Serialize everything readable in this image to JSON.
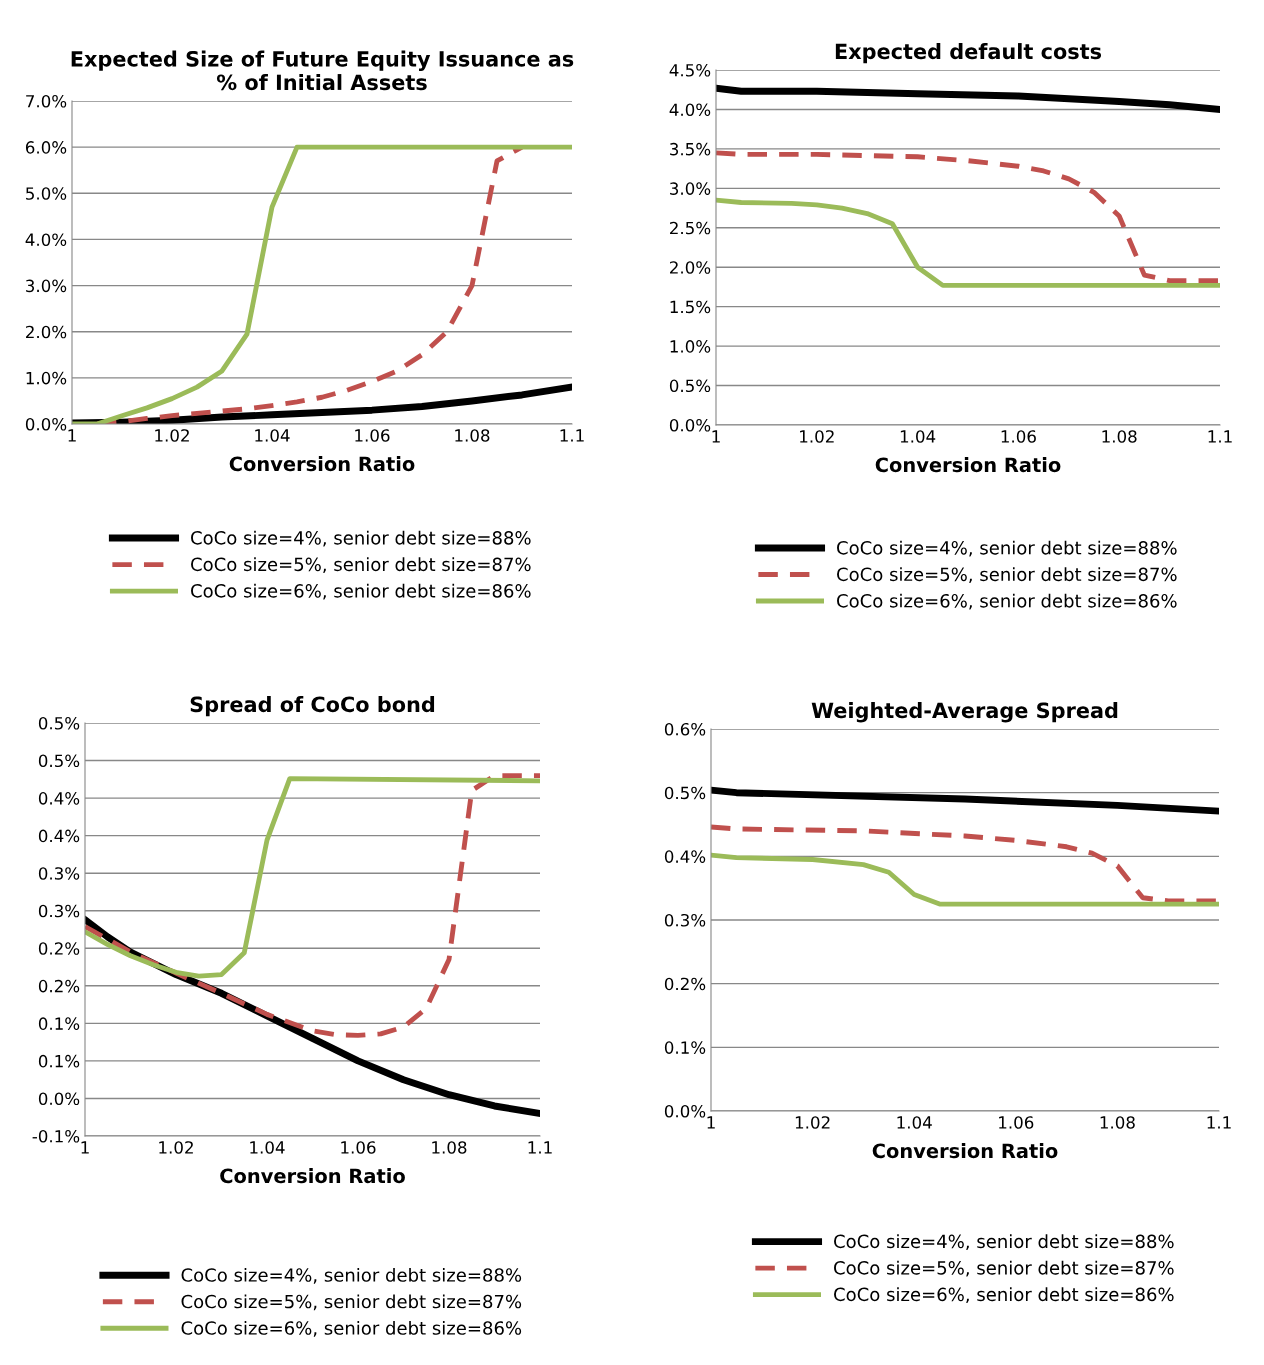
{
  "chart_data": [
    {
      "type": "line",
      "title": "Expected Size of Future Equity Issuance as\n% of Initial Assets",
      "xlabel": "Conversion Ratio",
      "xlim": [
        1,
        1.1
      ],
      "xticks": [
        1,
        1.02,
        1.04,
        1.06,
        1.08,
        1.1
      ],
      "ylim": [
        0,
        7
      ],
      "yticks": [
        {
          "value": 0,
          "label": "0.0%"
        },
        {
          "value": 1,
          "label": "1.0%"
        },
        {
          "value": 2,
          "label": "2.0%"
        },
        {
          "value": 3,
          "label": "3.0%"
        },
        {
          "value": 4,
          "label": "4.0%"
        },
        {
          "value": 5,
          "label": "5.0%"
        },
        {
          "value": 6,
          "label": "6.0%"
        },
        {
          "value": 7,
          "label": "7.0%"
        }
      ],
      "grid": "y",
      "legend": "bottom",
      "series": [
        {
          "name": "CoCo size=4%, senior debt size=88%",
          "color": "#000000",
          "line_style": "solid",
          "x": [
            1,
            1.01,
            1.02,
            1.03,
            1.04,
            1.05,
            1.06,
            1.07,
            1.08,
            1.09,
            1.1
          ],
          "values": [
            0.02,
            0.04,
            0.08,
            0.15,
            0.2,
            0.25,
            0.3,
            0.38,
            0.5,
            0.63,
            0.8
          ]
        },
        {
          "name": "CoCo size=5%, senior debt size=87%",
          "color": "#c0504d",
          "line_style": "dashed",
          "x": [
            1.005,
            1.01,
            1.015,
            1.02,
            1.025,
            1.03,
            1.035,
            1.04,
            1.045,
            1.05,
            1.055,
            1.06,
            1.065,
            1.07,
            1.075,
            1.08,
            1.085,
            1.09
          ],
          "values": [
            0,
            0.05,
            0.12,
            0.18,
            0.23,
            0.28,
            0.33,
            0.4,
            0.48,
            0.58,
            0.73,
            0.92,
            1.15,
            1.5,
            2.0,
            3.0,
            5.7,
            6.0
          ]
        },
        {
          "name": "CoCo size=6%, senior debt size=86%",
          "color": "#9bbb59",
          "line_style": "solid",
          "x": [
            1,
            1.005,
            1.01,
            1.015,
            1.02,
            1.025,
            1.03,
            1.035,
            1.04,
            1.045,
            1.1
          ],
          "values": [
            0,
            0,
            0.18,
            0.35,
            0.55,
            0.8,
            1.15,
            1.95,
            4.7,
            6.0,
            6.0
          ]
        }
      ]
    },
    {
      "type": "line",
      "title": "Expected default costs",
      "xlabel": "Conversion Ratio",
      "xlim": [
        1,
        1.1
      ],
      "xticks": [
        1,
        1.02,
        1.04,
        1.06,
        1.08,
        1.1
      ],
      "ylim": [
        0,
        4.5
      ],
      "yticks": [
        {
          "value": 0,
          "label": "0.0%"
        },
        {
          "value": 0.5,
          "label": "0.5%"
        },
        {
          "value": 1,
          "label": "1.0%"
        },
        {
          "value": 1.5,
          "label": "1.5%"
        },
        {
          "value": 2,
          "label": "2.0%"
        },
        {
          "value": 2.5,
          "label": "2.5%"
        },
        {
          "value": 3,
          "label": "3.0%"
        },
        {
          "value": 3.5,
          "label": "3.5%"
        },
        {
          "value": 4,
          "label": "4.0%"
        },
        {
          "value": 4.5,
          "label": "4.5%"
        }
      ],
      "grid": "y",
      "legend": "bottom",
      "series": [
        {
          "name": "CoCo size=4%, senior debt size=88%",
          "color": "#000000",
          "line_style": "solid",
          "x": [
            1,
            1.005,
            1.02,
            1.04,
            1.06,
            1.08,
            1.09,
            1.1
          ],
          "values": [
            4.27,
            4.23,
            4.23,
            4.2,
            4.17,
            4.1,
            4.06,
            4.0
          ]
        },
        {
          "name": "CoCo size=5%, senior debt size=87%",
          "color": "#c0504d",
          "line_style": "dashed",
          "x": [
            1,
            1.005,
            1.02,
            1.04,
            1.05,
            1.06,
            1.065,
            1.07,
            1.075,
            1.08,
            1.085,
            1.09,
            1.1
          ],
          "values": [
            3.45,
            3.43,
            3.43,
            3.4,
            3.35,
            3.28,
            3.22,
            3.12,
            2.95,
            2.65,
            1.9,
            1.83,
            1.83
          ]
        },
        {
          "name": "CoCo size=6%, senior debt size=86%",
          "color": "#9bbb59",
          "line_style": "solid",
          "x": [
            1,
            1.005,
            1.015,
            1.02,
            1.025,
            1.03,
            1.035,
            1.04,
            1.045,
            1.1
          ],
          "values": [
            2.85,
            2.82,
            2.81,
            2.79,
            2.75,
            2.68,
            2.55,
            2.0,
            1.77,
            1.77
          ]
        }
      ]
    },
    {
      "type": "line",
      "title": "Spread of CoCo bond",
      "xlabel": "Conversion Ratio",
      "xlim": [
        1,
        1.1
      ],
      "xticks": [
        1,
        1.02,
        1.04,
        1.06,
        1.08,
        1.1
      ],
      "ylim": [
        -0.05,
        0.5
      ],
      "yticks": [
        {
          "value": -0.05,
          "label": "-0.1%"
        },
        {
          "value": 0,
          "label": "0.0%"
        },
        {
          "value": 0.05,
          "label": "0.1%"
        },
        {
          "value": 0.1,
          "label": "0.1%"
        },
        {
          "value": 0.15,
          "label": "0.2%"
        },
        {
          "value": 0.2,
          "label": "0.2%"
        },
        {
          "value": 0.25,
          "label": "0.3%"
        },
        {
          "value": 0.3,
          "label": "0.3%"
        },
        {
          "value": 0.35,
          "label": "0.4%"
        },
        {
          "value": 0.4,
          "label": "0.4%"
        },
        {
          "value": 0.45,
          "label": "0.5%"
        },
        {
          "value": 0.5,
          "label": "0.5%"
        }
      ],
      "grid": "y",
      "legend": "bottom",
      "series": [
        {
          "name": "CoCo size=4%, senior debt size=88%",
          "color": "#000000",
          "line_style": "solid",
          "x": [
            1,
            1.005,
            1.01,
            1.02,
            1.03,
            1.04,
            1.05,
            1.06,
            1.07,
            1.08,
            1.09,
            1.1
          ],
          "values": [
            0.238,
            0.215,
            0.195,
            0.165,
            0.14,
            0.11,
            0.08,
            0.05,
            0.025,
            0.005,
            -0.01,
            -0.02
          ]
        },
        {
          "name": "CoCo size=5%, senior debt size=87%",
          "color": "#c0504d",
          "line_style": "dashed",
          "x": [
            1,
            1.01,
            1.02,
            1.03,
            1.04,
            1.05,
            1.055,
            1.06,
            1.065,
            1.07,
            1.075,
            1.08,
            1.085,
            1.09,
            1.1
          ],
          "values": [
            0.229,
            0.195,
            0.167,
            0.14,
            0.112,
            0.09,
            0.085,
            0.084,
            0.086,
            0.095,
            0.12,
            0.185,
            0.41,
            0.43,
            0.43
          ]
        },
        {
          "name": "CoCo size=6%, senior debt size=86%",
          "color": "#9bbb59",
          "line_style": "solid",
          "x": [
            1,
            1.005,
            1.01,
            1.015,
            1.02,
            1.025,
            1.03,
            1.035,
            1.04,
            1.045,
            1.1
          ],
          "values": [
            0.222,
            0.205,
            0.19,
            0.178,
            0.168,
            0.163,
            0.165,
            0.194,
            0.344,
            0.426,
            0.423
          ]
        }
      ]
    },
    {
      "type": "line",
      "title": "Weighted-Average Spread",
      "xlabel": "Conversion Ratio",
      "xlim": [
        1,
        1.1
      ],
      "xticks": [
        1,
        1.02,
        1.04,
        1.06,
        1.08,
        1.1
      ],
      "ylim": [
        0,
        0.6
      ],
      "yticks": [
        {
          "value": 0,
          "label": "0.0%"
        },
        {
          "value": 0.1,
          "label": "0.1%"
        },
        {
          "value": 0.2,
          "label": "0.2%"
        },
        {
          "value": 0.3,
          "label": "0.3%"
        },
        {
          "value": 0.4,
          "label": "0.4%"
        },
        {
          "value": 0.5,
          "label": "0.5%"
        },
        {
          "value": 0.6,
          "label": "0.6%"
        }
      ],
      "grid": "y",
      "legend": "bottom",
      "series": [
        {
          "name": "CoCo size=4%, senior debt size=88%",
          "color": "#000000",
          "line_style": "solid",
          "x": [
            1,
            1.005,
            1.05,
            1.08,
            1.1
          ],
          "values": [
            0.504,
            0.5,
            0.49,
            0.48,
            0.471
          ]
        },
        {
          "name": "CoCo size=5%, senior debt size=87%",
          "color": "#c0504d",
          "line_style": "dashed",
          "x": [
            1,
            1.005,
            1.03,
            1.05,
            1.06,
            1.07,
            1.075,
            1.08,
            1.085,
            1.09,
            1.1
          ],
          "values": [
            0.446,
            0.443,
            0.44,
            0.432,
            0.425,
            0.415,
            0.405,
            0.385,
            0.335,
            0.33,
            0.33
          ]
        },
        {
          "name": "CoCo size=6%, senior debt size=86%",
          "color": "#9bbb59",
          "line_style": "solid",
          "x": [
            1,
            1.005,
            1.02,
            1.03,
            1.035,
            1.04,
            1.045,
            1.1
          ],
          "values": [
            0.402,
            0.398,
            0.395,
            0.387,
            0.375,
            0.34,
            0.325,
            0.325
          ]
        }
      ]
    }
  ]
}
